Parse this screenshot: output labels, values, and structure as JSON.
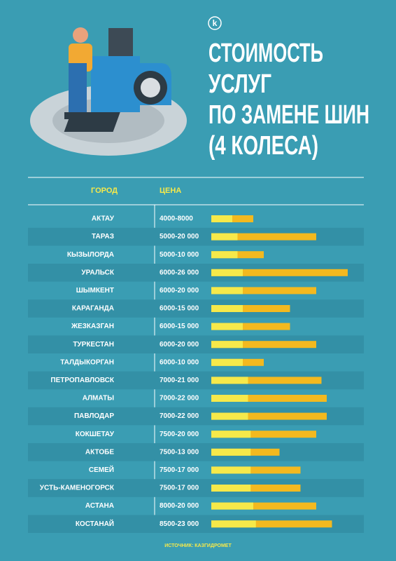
{
  "chart_data": {
    "type": "range-bar",
    "logo": "k",
    "title": [
      "СТОИМОСТЬ",
      "УСЛУГ",
      "ПО ЗАМЕНЕ ШИН",
      "(4 КОЛЕСА)"
    ],
    "column_headers": [
      "ГОРОД",
      "ЦЕНА"
    ],
    "categories": [
      "АКТАУ",
      "ТАРАЗ",
      "КЫЗЫЛОРДА",
      "УРАЛЬСК",
      "ШЫМКЕНТ",
      "КАРАГАНДА",
      "ЖЕЗКАЗГАН",
      "ТУРКЕСТАН",
      "ТАЛДЫКОРГАН",
      "ПЕТРОПАВЛОВСК",
      "АЛМАТЫ",
      "ПАВЛОДАР",
      "КОКШЕТАУ",
      "АКТОБЕ",
      "СЕМЕЙ",
      "УСТЬ-КАМЕНОГОРСК",
      "АСТАНА",
      "КОСТАНАЙ"
    ],
    "low": [
      4000,
      5000,
      5000,
      6000,
      6000,
      6000,
      6000,
      6000,
      6000,
      7000,
      7000,
      7000,
      7500,
      7500,
      7500,
      7500,
      8000,
      8500
    ],
    "high": [
      8000,
      20000,
      10000,
      26000,
      20000,
      15000,
      15000,
      20000,
      10000,
      21000,
      22000,
      22000,
      20000,
      13000,
      17000,
      17000,
      20000,
      23000
    ],
    "value_labels": [
      "4000-8000",
      "5000-20 000",
      "5000-10 000",
      "6000-26 000",
      "6000-20 000",
      "6000-15 000",
      "6000-15 000",
      "6000-20 000",
      "6000-10 000",
      "7000-21 000",
      "7000-22 000",
      "7000-22 000",
      "7500-20 000",
      "7500-13 000",
      "7500-17 000",
      "7500-17 000",
      "8000-20 000",
      "8500-23 000"
    ],
    "low_color": "#f6e94a",
    "high_color": "#f3b91f",
    "xlim": [
      0,
      28000
    ],
    "source": "ИСТОЧНИК: КАЗГИДРОМЕТ"
  }
}
